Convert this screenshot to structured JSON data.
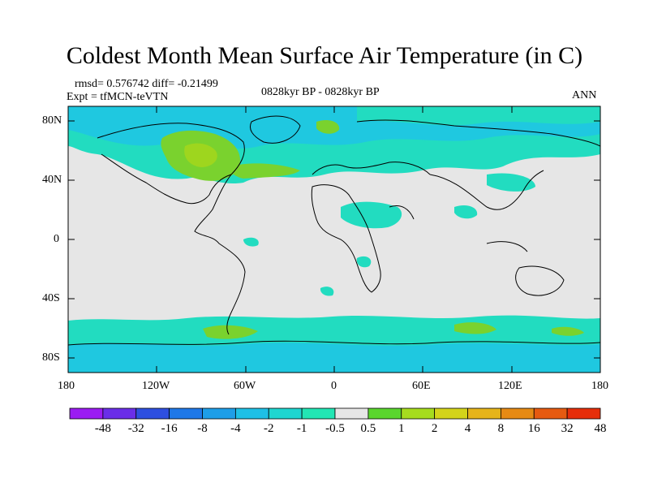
{
  "title": "Coldest Month Mean Surface Air Temperature (in C)",
  "stats": "rmsd= 0.576742 diff= -0.21499",
  "experiment": "Expt = tfMCN-teVTN",
  "period": "0828kyr BP - 0828kyr BP",
  "season": "ANN",
  "y_ticks": [
    "80N",
    "40N",
    "0",
    "40S",
    "80S"
  ],
  "x_ticks": [
    "180",
    "120W",
    "60W",
    "0",
    "60E",
    "120E",
    "180"
  ],
  "colorbar": {
    "labels": [
      "-48",
      "-32",
      "-16",
      "-8",
      "-4",
      "-2",
      "-1",
      "-0.5",
      "0.5",
      "1",
      "2",
      "4",
      "8",
      "16",
      "32",
      "48"
    ],
    "colors": [
      "#9b1bf2",
      "#6a2ee8",
      "#2e4fe0",
      "#1f78e8",
      "#1e9ee8",
      "#1fc0e6",
      "#1fd6d0",
      "#22e6b4",
      "#e6e6e6",
      "#5ad62e",
      "#a6dc1e",
      "#d4d41a",
      "#e6b41a",
      "#e68a14",
      "#e65a10",
      "#e62e0a"
    ]
  },
  "colors": {
    "background_field": "#e6e6e6",
    "teal_band": "#22dcc0",
    "cyan_band": "#1fc8e0",
    "green_band": "#7ad22e",
    "yellow_band": "#c8d41a"
  }
}
